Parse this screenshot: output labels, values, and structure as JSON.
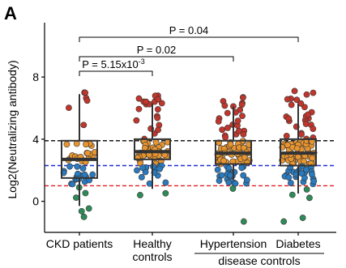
{
  "chart_data": {
    "type": "box",
    "panel_label": "A",
    "ylabel": "Log2(Neutralizing antibody)",
    "ylim": [
      -2,
      11.5
    ],
    "yticks": [
      0,
      4,
      8
    ],
    "categories": [
      "CKD patients",
      "Healthy\ncontrols",
      "Hypertension",
      "Diabetes"
    ],
    "group_label": "disease controls",
    "group_span": [
      2,
      3
    ],
    "reference_lines": [
      {
        "value": 3.9,
        "color": "#000000"
      },
      {
        "value": 2.3,
        "color": "#1f2ed8"
      },
      {
        "value": 1.0,
        "color": "#e21f26"
      }
    ],
    "boxes": [
      {
        "q1": 1.5,
        "median": 2.7,
        "q3": 3.9,
        "whisker_low": -0.3,
        "whisker_high": 6.9
      },
      {
        "q1": 2.7,
        "median": 3.2,
        "q3": 4.0,
        "whisker_low": 0.8,
        "whisker_high": 6.3
      },
      {
        "q1": 2.4,
        "median": 3.1,
        "q3": 3.9,
        "whisker_low": 1.4,
        "whisker_high": 6.1
      },
      {
        "q1": 2.3,
        "median": 3.1,
        "q3": 4.0,
        "whisker_low": 0.5,
        "whisker_high": 6.3
      }
    ],
    "point_colors": {
      "high": "#c0362c",
      "mid": "#e8952f",
      "low": "#2a7abf",
      "lowest": "#2e8b57"
    },
    "points": [
      {
        "n_high": 6,
        "n_mid": 20,
        "n_low": 18,
        "n_lowest": 6,
        "min": -1.0,
        "max": 7.0
      },
      {
        "n_high": 20,
        "n_mid": 40,
        "n_low": 15,
        "n_lowest": 2,
        "min": 0.4,
        "max": 6.8
      },
      {
        "n_high": 24,
        "n_mid": 45,
        "n_low": 22,
        "n_lowest": 2,
        "min": -1.3,
        "max": 6.7
      },
      {
        "n_high": 26,
        "n_mid": 55,
        "n_low": 24,
        "n_lowest": 5,
        "min": -1.3,
        "max": 7.1
      }
    ],
    "comparisons": [
      {
        "from": 0,
        "to": 1,
        "label": "P = 5.15x10",
        "exponent": "-3",
        "level": 0
      },
      {
        "from": 0,
        "to": 2,
        "label": "P = 0.02",
        "level": 1
      },
      {
        "from": 0,
        "to": 3,
        "label": "P = 0.04",
        "level": 2
      }
    ]
  }
}
